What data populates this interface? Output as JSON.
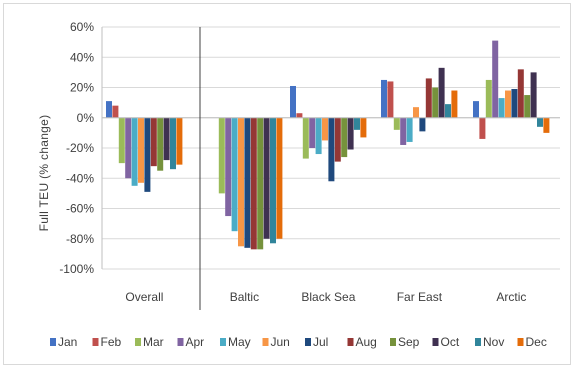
{
  "chart_data": {
    "type": "bar",
    "title": "",
    "xlabel": "",
    "ylabel": "Full TEU (% change)",
    "ylim": [
      -100,
      60
    ],
    "yticks": [
      60,
      40,
      20,
      0,
      -20,
      -40,
      -60,
      -80,
      -100
    ],
    "ytick_labels": [
      "60%",
      "40%",
      "20%",
      "0%",
      "-20%",
      "-40%",
      "-60%",
      "-80%",
      "-100%"
    ],
    "grid": true,
    "legend_position": "bottom",
    "categories": [
      "Overall",
      "Baltic",
      "Black Sea",
      "Far East",
      "Arctic"
    ],
    "series": [
      {
        "name": "Jan",
        "color": "#4472c4",
        "values": [
          11,
          0,
          21,
          25,
          11
        ]
      },
      {
        "name": "Feb",
        "color": "#c0504d",
        "values": [
          8,
          0,
          3,
          24,
          -14
        ]
      },
      {
        "name": "Mar",
        "color": "#9bbb59",
        "values": [
          -30,
          -50,
          -27,
          -8,
          25
        ]
      },
      {
        "name": "Apr",
        "color": "#8064a2",
        "values": [
          -40,
          -65,
          -20,
          -18,
          51
        ]
      },
      {
        "name": "May",
        "color": "#4bacc6",
        "values": [
          -45,
          -75,
          -24,
          -16,
          13
        ]
      },
      {
        "name": "Jun",
        "color": "#f79646",
        "values": [
          -43,
          -85,
          -15,
          7,
          18
        ]
      },
      {
        "name": "Jul",
        "color": "#1f497d",
        "values": [
          -49,
          -86,
          -42,
          -9,
          19
        ]
      },
      {
        "name": "Aug",
        "color": "#953735",
        "values": [
          -32,
          -87,
          -29,
          26,
          32
        ]
      },
      {
        "name": "Sep",
        "color": "#76923c",
        "values": [
          -35,
          -87,
          -26,
          20,
          15
        ]
      },
      {
        "name": "Oct",
        "color": "#3f3151",
        "values": [
          -28,
          -80,
          -21,
          33,
          30
        ]
      },
      {
        "name": "Nov",
        "color": "#31859b",
        "values": [
          -34,
          -83,
          -8,
          9,
          -6
        ]
      },
      {
        "name": "Dec",
        "color": "#e46c0a",
        "values": [
          -31,
          -80,
          -13,
          18,
          -10
        ]
      }
    ]
  }
}
